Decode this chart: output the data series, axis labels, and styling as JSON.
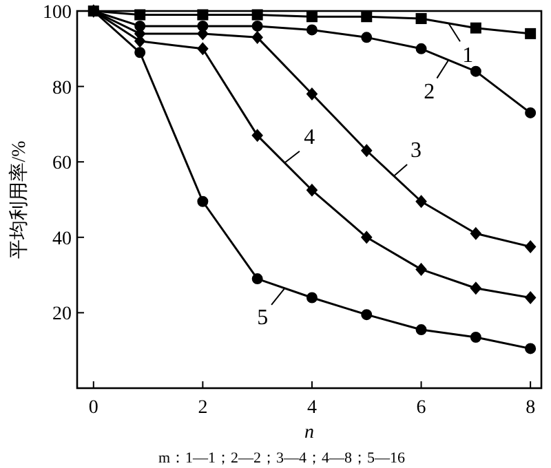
{
  "chart_data": {
    "type": "line",
    "ylabel": "平均利用率/%",
    "xlabel": "n",
    "x": [
      0,
      0.85,
      2,
      3,
      4,
      5,
      6,
      7,
      8
    ],
    "series": [
      {
        "name": "1",
        "color": "#000000",
        "marker": "square",
        "values": [
          100,
          99,
          99,
          99,
          98.5,
          98.5,
          98,
          95.5,
          94
        ]
      },
      {
        "name": "2",
        "color": "#000000",
        "marker": "circle",
        "values": [
          100,
          96,
          96,
          96,
          95,
          93,
          90,
          84,
          73
        ]
      },
      {
        "name": "3",
        "color": "#000000",
        "marker": "diamond",
        "values": [
          100,
          94,
          94,
          93,
          78,
          63,
          49.5,
          41,
          37.5
        ]
      },
      {
        "name": "4",
        "color": "#000000",
        "marker": "diamond",
        "values": [
          100,
          92,
          90,
          67,
          52.5,
          40,
          31.5,
          26.5,
          24
        ]
      },
      {
        "name": "5",
        "color": "#000000",
        "marker": "circle",
        "values": [
          100,
          89,
          49.5,
          29,
          24,
          19.5,
          15.5,
          13.5,
          10.5
        ]
      }
    ],
    "xlim": [
      -0.3,
      8.2
    ],
    "ylim": [
      0,
      100
    ],
    "xticks": [
      0,
      2,
      4,
      6,
      8
    ],
    "yticks": [
      20,
      40,
      60,
      80,
      100
    ],
    "annotations": [
      "m：1—1；2—2；3—4；4—8；5—16"
    ],
    "line_style": "solid",
    "grid": false,
    "legend": "right"
  }
}
